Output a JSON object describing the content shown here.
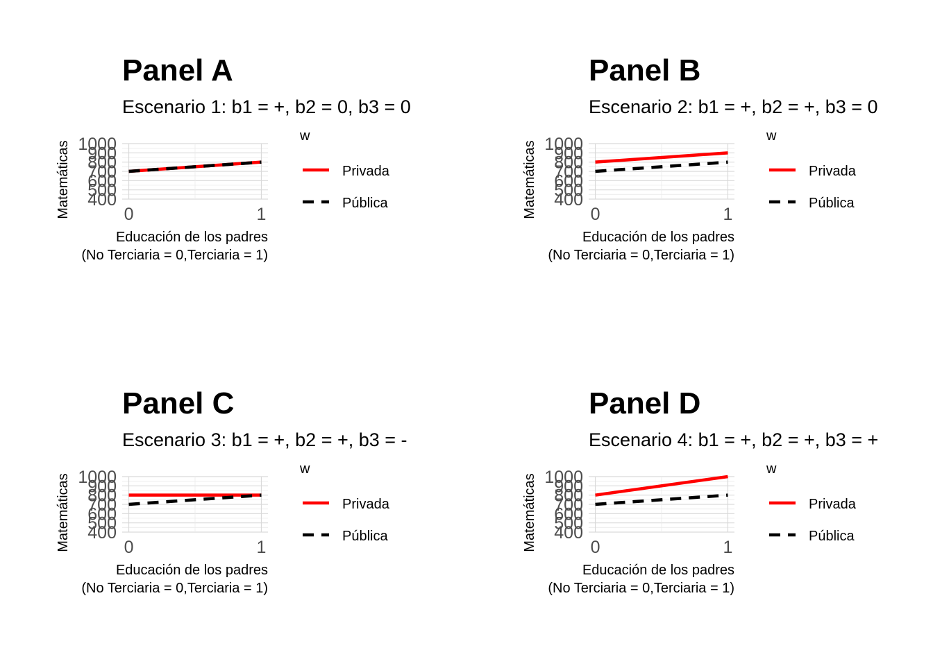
{
  "chart_data": [
    {
      "type": "line",
      "title": "Panel A",
      "subtitle": "Escenario 1: b1 = +, b2 = 0, b3 = 0",
      "xlabel_lines": [
        "Educación de los padres",
        "(No Terciaria = 0,Terciaria = 1)"
      ],
      "ylabel": "Matemáticas",
      "x": [
        0,
        1
      ],
      "x_ticks": [
        "0",
        "1"
      ],
      "y_ticks": [
        "400",
        "500",
        "600",
        "700",
        "800",
        "900",
        "1000"
      ],
      "xlim": [
        -0.05,
        1.05
      ],
      "ylim": [
        400,
        1000
      ],
      "grid": true,
      "legend": {
        "title": "w",
        "placement": "right"
      },
      "series": [
        {
          "name": "Privada",
          "values": [
            700,
            800
          ],
          "color": "#ff0000",
          "dash": "solid"
        },
        {
          "name": "Pública",
          "values": [
            700,
            800
          ],
          "color": "#000000",
          "dash": "dashed"
        }
      ]
    },
    {
      "type": "line",
      "title": "Panel B",
      "subtitle": "Escenario 2: b1 = +, b2 = +, b3 = 0",
      "xlabel_lines": [
        "Educación de los padres",
        "(No Terciaria = 0,Terciaria = 1)"
      ],
      "ylabel": "Matemáticas",
      "x": [
        0,
        1
      ],
      "x_ticks": [
        "0",
        "1"
      ],
      "y_ticks": [
        "400",
        "500",
        "600",
        "700",
        "800",
        "900",
        "1000"
      ],
      "xlim": [
        -0.05,
        1.05
      ],
      "ylim": [
        400,
        1000
      ],
      "grid": true,
      "legend": {
        "title": "w",
        "placement": "right"
      },
      "series": [
        {
          "name": "Privada",
          "values": [
            800,
            900
          ],
          "color": "#ff0000",
          "dash": "solid"
        },
        {
          "name": "Pública",
          "values": [
            700,
            800
          ],
          "color": "#000000",
          "dash": "dashed"
        }
      ]
    },
    {
      "type": "line",
      "title": "Panel C",
      "subtitle": "Escenario 3: b1 = +, b2 = +, b3 = -",
      "xlabel_lines": [
        "Educación de los padres",
        "(No Terciaria = 0,Terciaria = 1)"
      ],
      "ylabel": "Matemáticas",
      "x": [
        0,
        1
      ],
      "x_ticks": [
        "0",
        "1"
      ],
      "y_ticks": [
        "400",
        "500",
        "600",
        "700",
        "800",
        "900",
        "1000"
      ],
      "xlim": [
        -0.05,
        1.05
      ],
      "ylim": [
        400,
        1000
      ],
      "grid": true,
      "legend": {
        "title": "w",
        "placement": "right"
      },
      "series": [
        {
          "name": "Privada",
          "values": [
            800,
            800
          ],
          "color": "#ff0000",
          "dash": "solid"
        },
        {
          "name": "Pública",
          "values": [
            700,
            800
          ],
          "color": "#000000",
          "dash": "dashed"
        }
      ]
    },
    {
      "type": "line",
      "title": "Panel D",
      "subtitle": "Escenario 4: b1 = +, b2 = +, b3 = +",
      "xlabel_lines": [
        "Educación de los padres",
        "(No Terciaria = 0,Terciaria = 1)"
      ],
      "ylabel": "Matemáticas",
      "x": [
        0,
        1
      ],
      "x_ticks": [
        "0",
        "1"
      ],
      "y_ticks": [
        "400",
        "500",
        "600",
        "700",
        "800",
        "900",
        "1000"
      ],
      "xlim": [
        -0.05,
        1.05
      ],
      "ylim": [
        400,
        1000
      ],
      "grid": true,
      "legend": {
        "title": "w",
        "placement": "right"
      },
      "series": [
        {
          "name": "Privada",
          "values": [
            800,
            1000
          ],
          "color": "#ff0000",
          "dash": "solid"
        },
        {
          "name": "Pública",
          "values": [
            700,
            800
          ],
          "color": "#000000",
          "dash": "dashed"
        }
      ]
    }
  ]
}
